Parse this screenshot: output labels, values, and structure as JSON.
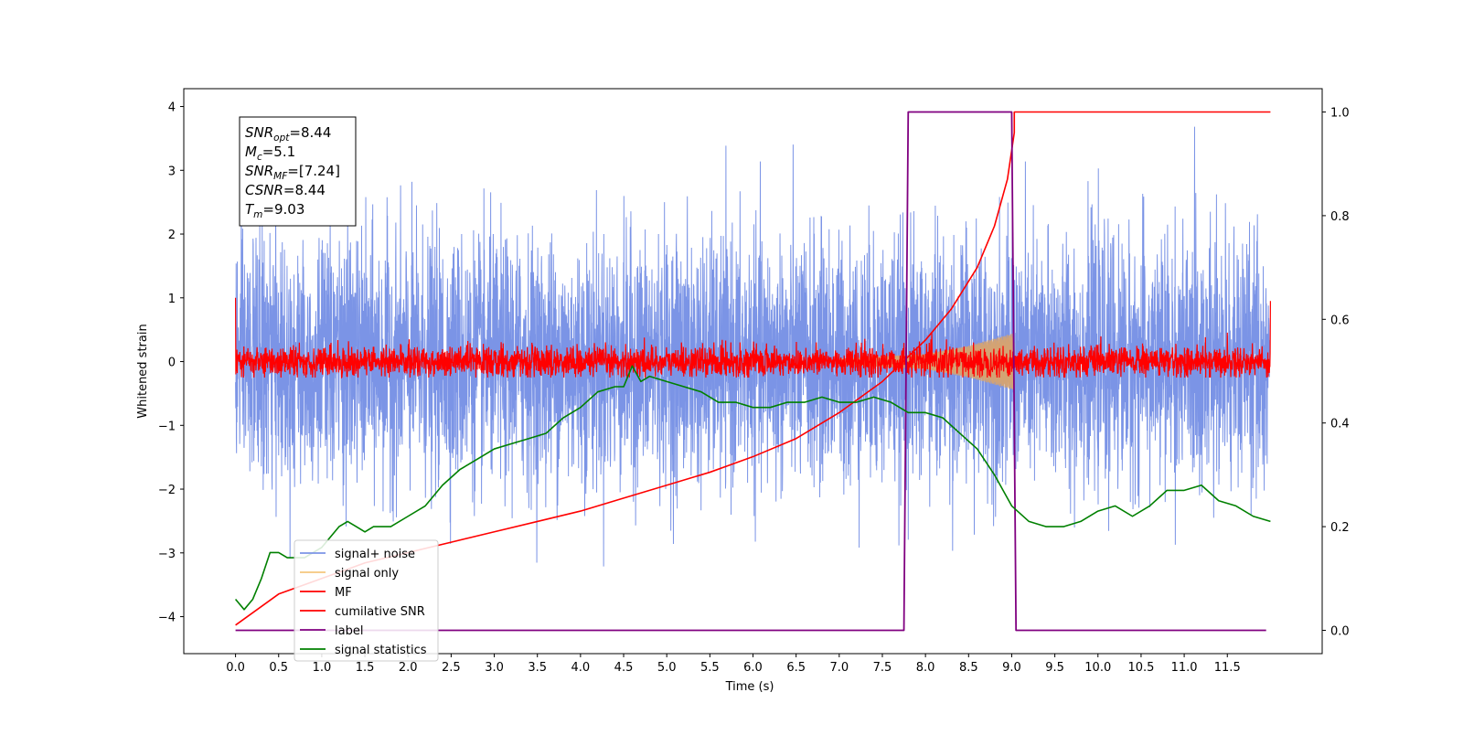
{
  "chart_data": {
    "type": "line",
    "title": "",
    "xlabel": "Time (s)",
    "ylabel": "Whitened strain",
    "xlim": [
      -0.6,
      12.6
    ],
    "ylim": [
      -4.58,
      4.28
    ],
    "y2lim": [
      -0.045,
      1.045
    ],
    "grid": false,
    "legend_position": "bottom-left",
    "x_ticks": [
      "0.0",
      "0.5",
      "1.0",
      "1.5",
      "2.0",
      "2.5",
      "3.0",
      "3.5",
      "4.0",
      "4.5",
      "5.0",
      "5.5",
      "6.0",
      "6.5",
      "7.0",
      "7.5",
      "8.0",
      "8.5",
      "9.0",
      "9.5",
      "10.0",
      "10.5",
      "11.0",
      "11.5"
    ],
    "y_ticks": [
      "4",
      "3",
      "2",
      "1",
      "0",
      "−1",
      "−2",
      "−3",
      "−4"
    ],
    "y2_ticks": [
      "1.0",
      "0.8",
      "0.6",
      "0.4",
      "0.2",
      "0.0"
    ],
    "annotation_lines": [
      {
        "symbol": "SNR",
        "sub": "opt",
        "value": "=8.44"
      },
      {
        "symbol": "M",
        "sub": "c",
        "value": "=5.1"
      },
      {
        "symbol": "SNR",
        "sub": "MF",
        "value": "=[7.24]"
      },
      {
        "symbol": "CSNR",
        "sub": "",
        "value": "=8.44"
      },
      {
        "symbol": "T",
        "sub": "m",
        "value": "=9.03"
      }
    ],
    "series": [
      {
        "name": "signal+ noise",
        "color": "#7b94e6",
        "axis": "left",
        "kind": "noise",
        "amplitude_std": 0.95,
        "range": [
          0.0,
          11.99
        ]
      },
      {
        "name": "signal only",
        "color": "#f5c77e",
        "axis": "left",
        "kind": "chirp",
        "envelope": {
          "t": [
            7.0,
            8.0,
            8.5,
            8.9,
            9.03
          ],
          "amp": [
            0.05,
            0.12,
            0.25,
            0.4,
            0.45
          ]
        }
      },
      {
        "name": "MF",
        "color": "#ff0000",
        "axis": "left",
        "kind": "noise",
        "amplitude_std": 0.12,
        "range": [
          0.0,
          12.0
        ]
      },
      {
        "name": "cumilative SNR",
        "color": "#ff0000",
        "axis": "right",
        "kind": "line",
        "x": [
          0.0,
          0.5,
          1.0,
          1.5,
          2.0,
          2.5,
          3.0,
          3.5,
          4.0,
          4.5,
          5.0,
          5.5,
          6.0,
          6.5,
          7.0,
          7.5,
          8.0,
          8.3,
          8.6,
          8.8,
          8.95,
          9.03,
          9.03,
          12.0
        ],
        "y": [
          0.01,
          0.07,
          0.1,
          0.13,
          0.15,
          0.17,
          0.19,
          0.21,
          0.23,
          0.255,
          0.28,
          0.305,
          0.335,
          0.37,
          0.42,
          0.48,
          0.56,
          0.62,
          0.7,
          0.78,
          0.87,
          0.96,
          1.0,
          1.0
        ]
      },
      {
        "name": "label",
        "color": "#800080",
        "axis": "right",
        "kind": "line",
        "x": [
          0.0,
          7.75,
          7.8,
          9.0,
          9.05,
          11.95
        ],
        "y": [
          0.0,
          0.0,
          1.0,
          1.0,
          0.0,
          0.0
        ]
      },
      {
        "name": "signal statistics",
        "color": "#008000",
        "axis": "right",
        "kind": "line",
        "x": [
          0.0,
          0.1,
          0.2,
          0.3,
          0.4,
          0.5,
          0.6,
          0.8,
          1.0,
          1.2,
          1.3,
          1.4,
          1.5,
          1.6,
          1.8,
          2.0,
          2.2,
          2.4,
          2.6,
          2.8,
          3.0,
          3.2,
          3.4,
          3.6,
          3.8,
          4.0,
          4.2,
          4.4,
          4.5,
          4.6,
          4.7,
          4.8,
          5.0,
          5.2,
          5.4,
          5.6,
          5.8,
          6.0,
          6.2,
          6.4,
          6.6,
          6.8,
          7.0,
          7.2,
          7.4,
          7.6,
          7.8,
          8.0,
          8.2,
          8.4,
          8.6,
          8.8,
          9.0,
          9.2,
          9.4,
          9.6,
          9.8,
          10.0,
          10.2,
          10.4,
          10.6,
          10.8,
          11.0,
          11.2,
          11.4,
          11.6,
          11.8,
          12.0
        ],
        "y": [
          0.06,
          0.04,
          0.06,
          0.1,
          0.15,
          0.15,
          0.14,
          0.14,
          0.16,
          0.2,
          0.21,
          0.2,
          0.19,
          0.2,
          0.2,
          0.22,
          0.24,
          0.28,
          0.31,
          0.33,
          0.35,
          0.36,
          0.37,
          0.38,
          0.41,
          0.43,
          0.46,
          0.47,
          0.47,
          0.51,
          0.48,
          0.49,
          0.48,
          0.47,
          0.46,
          0.44,
          0.44,
          0.43,
          0.43,
          0.44,
          0.44,
          0.45,
          0.44,
          0.44,
          0.45,
          0.44,
          0.42,
          0.42,
          0.41,
          0.38,
          0.35,
          0.3,
          0.24,
          0.21,
          0.2,
          0.2,
          0.21,
          0.23,
          0.24,
          0.22,
          0.24,
          0.27,
          0.27,
          0.28,
          0.25,
          0.24,
          0.22,
          0.21
        ]
      }
    ]
  }
}
